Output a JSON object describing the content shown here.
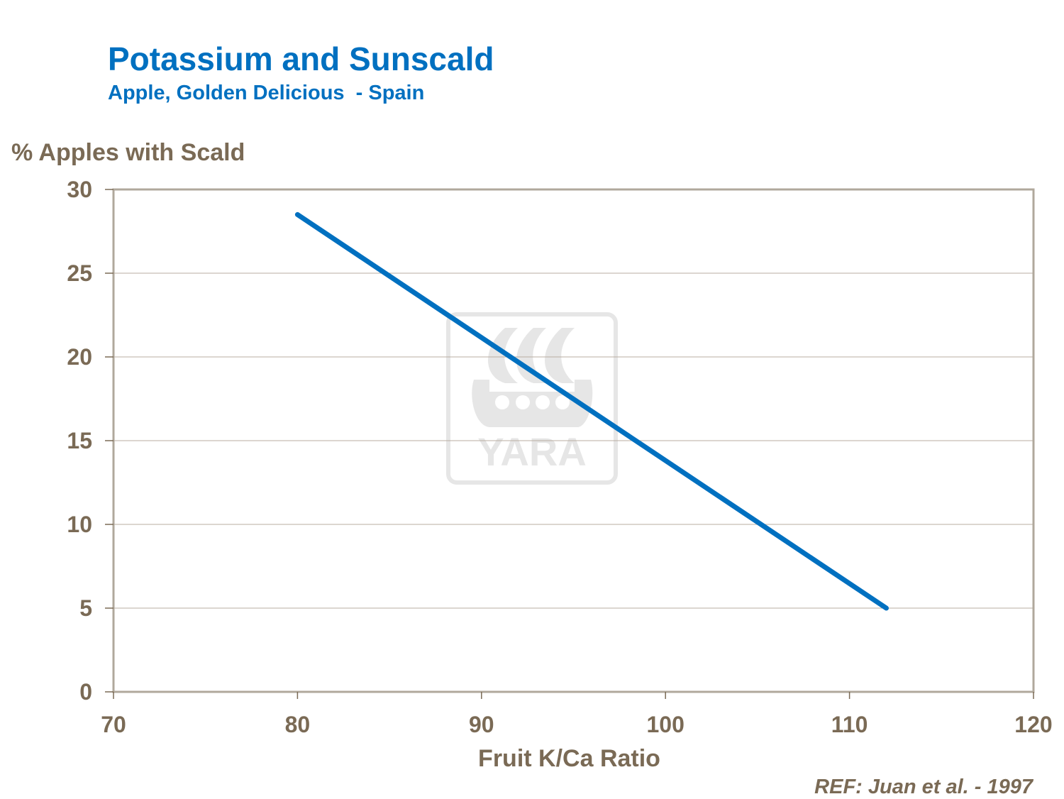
{
  "chart_data": {
    "type": "line",
    "title": "Potassium and Sunscald",
    "subtitle": "Apple, Golden Delicious  - Spain",
    "xlabel": "Fruit K/Ca Ratio",
    "ylabel": "% Apples with Scald",
    "xlim": [
      70,
      120
    ],
    "ylim": [
      0,
      30
    ],
    "x_ticks": [
      70,
      80,
      90,
      100,
      110,
      120
    ],
    "y_ticks": [
      0,
      5,
      10,
      15,
      20,
      25,
      30
    ],
    "grid": "horizontal",
    "series": [
      {
        "x": [
          80,
          112
        ],
        "y": [
          28.5,
          5
        ],
        "color": "#0070c0"
      }
    ]
  },
  "reference": "REF: Juan et al. - 1997",
  "watermark": {
    "text": "YARA",
    "color": "#e6e6e6"
  },
  "colors": {
    "title": "#0070c0",
    "axis_text": "#7a6a55",
    "frame": "#b0a89c",
    "grid": "#b8aca0"
  }
}
